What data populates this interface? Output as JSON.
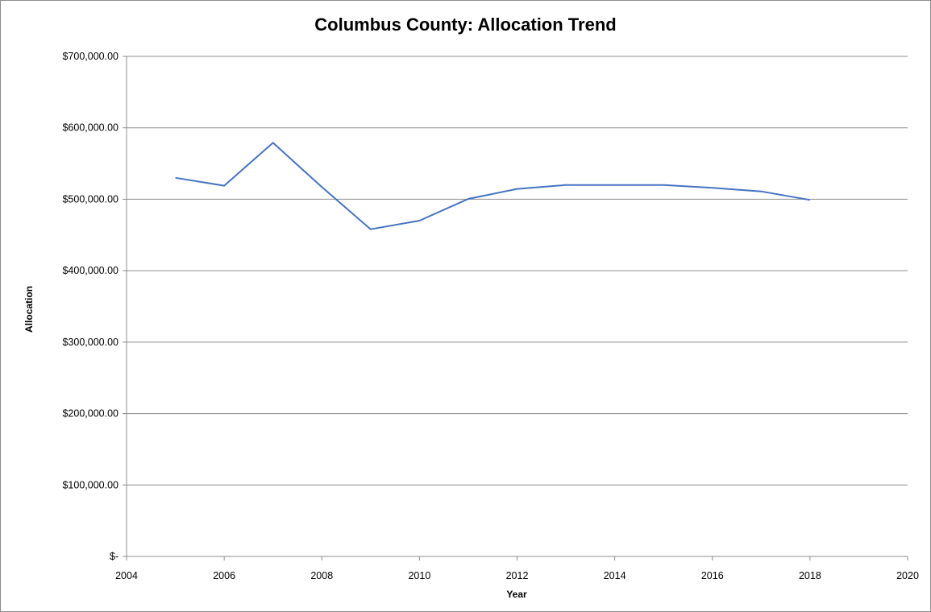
{
  "chart_data": {
    "type": "line",
    "title": "Columbus County: Allocation Trend",
    "xlabel": "Year",
    "ylabel": "Allocation",
    "xlim": [
      2004,
      2020
    ],
    "ylim": [
      0,
      700000
    ],
    "x_ticks": [
      2004,
      2006,
      2008,
      2010,
      2012,
      2014,
      2016,
      2018,
      2020
    ],
    "x_tick_labels": [
      "2004",
      "2006",
      "2008",
      "2010",
      "2012",
      "2014",
      "2016",
      "2018",
      "2020"
    ],
    "y_ticks": [
      0,
      100000,
      200000,
      300000,
      400000,
      500000,
      600000,
      700000
    ],
    "y_tick_labels": [
      "$-",
      "$100,000.00",
      "$200,000.00",
      "$300,000.00",
      "$400,000.00",
      "$500,000.00",
      "$600,000.00",
      "$700,000.00"
    ],
    "grid": "horizontal",
    "legend": "none",
    "series": [
      {
        "color": "#4472c4",
        "x": [
          2005,
          2006,
          2007,
          2008,
          2009,
          2010,
          2011,
          2012,
          2013,
          2014,
          2015,
          2016,
          2017,
          2018
        ],
        "y": [
          530000,
          519000,
          579000,
          517000,
          458000,
          470000,
          500500,
          514500,
          520000,
          520000,
          520000,
          516000,
          511000,
          499000
        ]
      }
    ]
  }
}
